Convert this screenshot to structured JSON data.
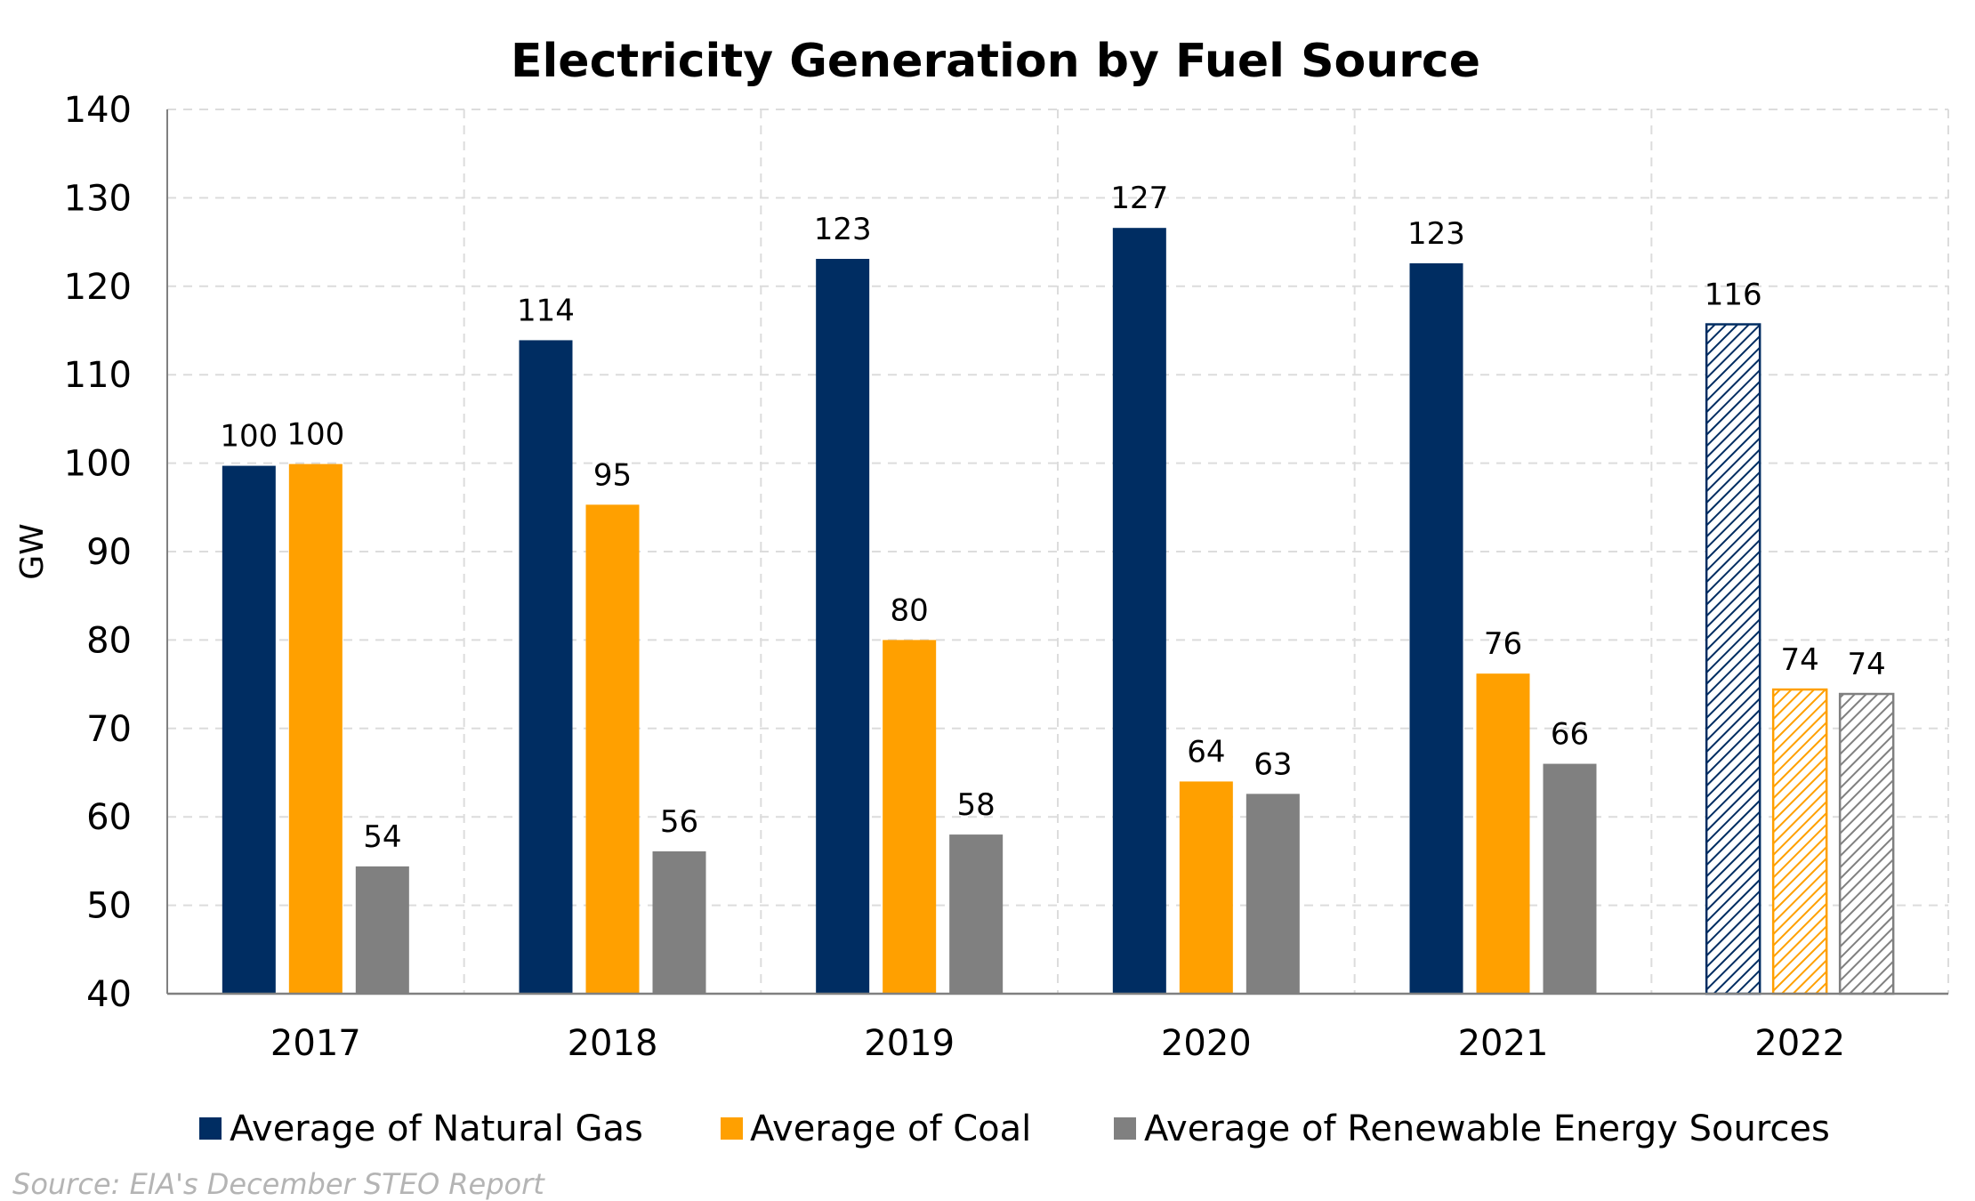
{
  "chart_data": {
    "type": "bar",
    "title": "Electricity Generation by Fuel Source",
    "xlabel": "",
    "ylabel": "GW",
    "categories": [
      "2017",
      "2018",
      "2019",
      "2020",
      "2021",
      "2022"
    ],
    "ylim": [
      40,
      140
    ],
    "yticks": [
      40,
      50,
      60,
      70,
      80,
      90,
      100,
      110,
      120,
      130,
      140
    ],
    "grid": true,
    "legend_position": "bottom",
    "projected_categories": [
      "2022"
    ],
    "series": [
      {
        "name": "Average of Natural Gas",
        "color": "#002d62",
        "values": [
          99.7,
          113.9,
          123.1,
          126.6,
          122.6,
          115.7
        ],
        "labels": [
          "100",
          "114",
          "123",
          "127",
          "123",
          "116"
        ]
      },
      {
        "name": "Average of Coal",
        "color": "#ffa000",
        "values": [
          99.9,
          95.3,
          80.0,
          64.0,
          76.2,
          74.4
        ],
        "labels": [
          "100",
          "95",
          "80",
          "64",
          "76",
          "74"
        ]
      },
      {
        "name": "Average of Renewable Energy Sources",
        "color": "#808080",
        "values": [
          54.4,
          56.1,
          58.0,
          62.6,
          66.0,
          73.9
        ],
        "labels": [
          "54",
          "56",
          "58",
          "63",
          "66",
          "74"
        ]
      }
    ]
  },
  "footer": {
    "source": "Source: EIA's December STEO Report"
  }
}
